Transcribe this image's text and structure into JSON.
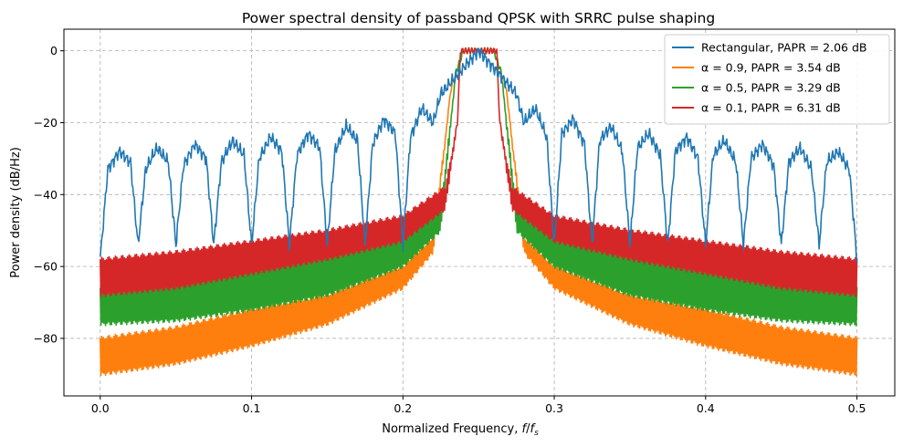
{
  "chart_data": {
    "type": "line",
    "title": "Power spectral density of passband QPSK with SRRC pulse shaping",
    "xlabel": "Normalized Frequency, f/f_s",
    "ylabel": "Power density (dB/Hz)",
    "xlim": [
      -0.024,
      0.525
    ],
    "ylim": [
      -96,
      6
    ],
    "xticks": [
      "0.0",
      "0.1",
      "0.2",
      "0.3",
      "0.4",
      "0.5"
    ],
    "yticks": [
      "0",
      "−20",
      "−40",
      "−60",
      "−80"
    ],
    "grid": true,
    "legend_position": "top-right",
    "series": [
      {
        "name": "Rectangular, PAPR = 2.06 dB",
        "color": "#1f77b4",
        "kind": "rect",
        "x": [
          0.0,
          0.005,
          0.0125,
          0.02,
          0.025,
          0.03,
          0.0375,
          0.045,
          0.05,
          0.055,
          0.0625,
          0.07,
          0.075,
          0.08,
          0.0875,
          0.095,
          0.1,
          0.105,
          0.1125,
          0.12,
          0.125,
          0.13,
          0.1375,
          0.145,
          0.15,
          0.155,
          0.1625,
          0.17,
          0.175,
          0.18,
          0.1875,
          0.195,
          0.2,
          0.205,
          0.2125,
          0.22,
          0.225,
          0.25,
          0.275,
          0.28,
          0.2875,
          0.295,
          0.3,
          0.305,
          0.3125,
          0.32,
          0.325,
          0.33,
          0.3375,
          0.345,
          0.35,
          0.355,
          0.3625,
          0.37,
          0.375,
          0.38,
          0.3875,
          0.395,
          0.4,
          0.405,
          0.4125,
          0.42,
          0.425,
          0.43,
          0.4375,
          0.445,
          0.45,
          0.455,
          0.4625,
          0.47,
          0.475,
          0.48,
          0.4875,
          0.495,
          0.5
        ],
        "y": [
          -58,
          -33,
          -28,
          -31,
          -54,
          -33,
          -27,
          -31,
          -54,
          -32,
          -26,
          -30,
          -54,
          -31,
          -25,
          -29,
          -54,
          -30,
          -24,
          -28,
          -54,
          -29,
          -23,
          -27,
          -54,
          -28,
          -21,
          -25,
          -54,
          -26,
          -19,
          -23,
          -54,
          -24,
          -16,
          -20,
          -12,
          0,
          -12,
          -20,
          -16,
          -24,
          -54,
          -23,
          -19,
          -26,
          -54,
          -25,
          -21,
          -28,
          -54,
          -27,
          -23,
          -29,
          -54,
          -28,
          -24,
          -30,
          -54,
          -29,
          -25,
          -31,
          -54,
          -30,
          -26,
          -32,
          -54,
          -31,
          -27,
          -33,
          -54,
          -31,
          -28,
          -33,
          -58
        ]
      },
      {
        "name": "α = 0.9, PAPR = 3.54 dB",
        "color": "#ff7f0e",
        "kind": "srrc",
        "x": [
          0.0,
          0.05,
          0.1,
          0.15,
          0.2,
          0.22,
          0.232,
          0.24,
          0.25,
          0.26,
          0.268,
          0.28,
          0.3,
          0.35,
          0.4,
          0.45,
          0.5
        ],
        "y_upper": [
          -80,
          -77,
          -72,
          -68,
          -60,
          -52,
          -10,
          0,
          0,
          0,
          -10,
          -52,
          -60,
          -68,
          -72,
          -77,
          -80
        ],
        "y_lower": [
          -90,
          -87,
          -82,
          -76,
          -66,
          -56,
          -10,
          0,
          0,
          0,
          -10,
          -56,
          -66,
          -76,
          -82,
          -87,
          -90
        ]
      },
      {
        "name": "α = 0.5, PAPR = 3.29 dB",
        "color": "#2ca02c",
        "kind": "srrc",
        "x": [
          0.0,
          0.05,
          0.1,
          0.15,
          0.2,
          0.225,
          0.235,
          0.24,
          0.25,
          0.26,
          0.265,
          0.275,
          0.3,
          0.35,
          0.4,
          0.45,
          0.5
        ],
        "y_upper": [
          -66,
          -64,
          -61,
          -57,
          -52,
          -44,
          -6,
          0,
          0,
          0,
          -6,
          -44,
          -52,
          -57,
          -61,
          -64,
          -66
        ],
        "y_lower": [
          -76,
          -75,
          -72,
          -68,
          -60,
          -50,
          -6,
          0,
          0,
          0,
          -6,
          -50,
          -60,
          -68,
          -72,
          -75,
          -76
        ]
      },
      {
        "name": "α = 0.1, PAPR = 6.31 dB",
        "color": "#d62728",
        "kind": "srrc",
        "x": [
          0.0,
          0.05,
          0.1,
          0.15,
          0.2,
          0.228,
          0.236,
          0.238,
          0.25,
          0.262,
          0.264,
          0.272,
          0.3,
          0.35,
          0.4,
          0.45,
          0.5
        ],
        "y_upper": [
          -58,
          -56,
          -53,
          -50,
          -46,
          -38,
          -20,
          0,
          0,
          0,
          -20,
          -38,
          -46,
          -50,
          -53,
          -56,
          -58
        ],
        "y_lower": [
          -68,
          -66,
          -62,
          -58,
          -53,
          -44,
          -20,
          0,
          0,
          0,
          -20,
          -44,
          -53,
          -58,
          -62,
          -66,
          -68
        ]
      }
    ]
  }
}
